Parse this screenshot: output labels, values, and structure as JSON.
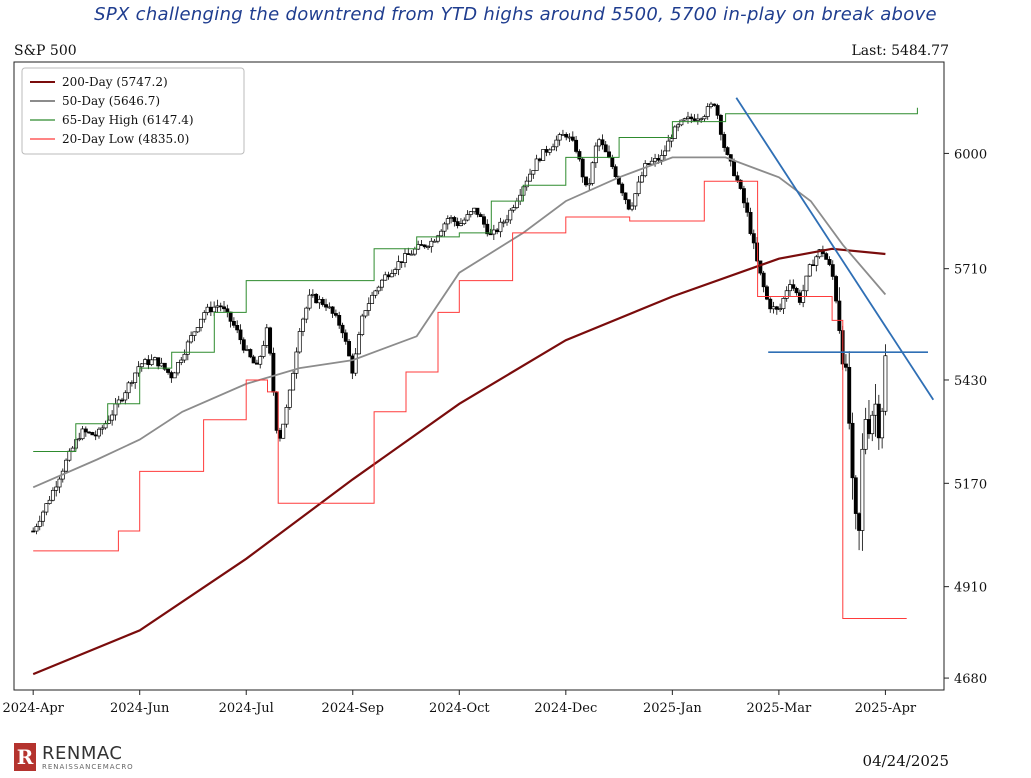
{
  "header": {
    "headline": "SPX challenging the downtrend from YTD highs around 5500, 5700 in-play on break above",
    "series_name": "S&P 500",
    "last_label": "Last: 5484.77"
  },
  "footer": {
    "brand": "RENMAC",
    "brand_sub": "RENAISSANCEMACRO",
    "date": "04/24/2025"
  },
  "chart_data": {
    "type": "line",
    "title": "S&P 500",
    "xlabel": "",
    "ylabel": "",
    "x_ticks": [
      "2024-Apr",
      "2024-Jun",
      "2024-Jul",
      "2024-Sep",
      "2024-Oct",
      "2024-Dec",
      "2025-Jan",
      "2025-Mar",
      "2025-Apr"
    ],
    "y_ticks": [
      4680,
      4910,
      5170,
      5430,
      5710,
      6000
    ],
    "ylim": [
      4650,
      6230
    ],
    "grid": false,
    "legend_position": "top-left",
    "legend": [
      {
        "label": "200-Day",
        "value": "(5747.2)",
        "color": "#7a0c0c"
      },
      {
        "label": "50-Day",
        "value": "(5646.7)",
        "color": "#8c8c8c"
      },
      {
        "label": "65-Day High",
        "value": "(6147.4)",
        "color": "#2e8b2e"
      },
      {
        "label": "20-Day Low",
        "value": "(4835.0)",
        "color": "#ff3b3b"
      }
    ],
    "series": [
      {
        "name": "200-Day",
        "color": "#7a0c0c",
        "x": [
          0,
          1,
          2,
          3,
          4,
          5,
          6,
          7,
          7.5,
          8
        ],
        "values": [
          4690,
          4800,
          4980,
          5180,
          5370,
          5530,
          5640,
          5735,
          5760,
          5747
        ]
      },
      {
        "name": "50-Day",
        "color": "#8c8c8c",
        "x": [
          0,
          0.6,
          1,
          1.4,
          2,
          2.5,
          3,
          3.6,
          4,
          4.6,
          5,
          5.5,
          6,
          6.5,
          7,
          7.3,
          7.6,
          8
        ],
        "values": [
          5160,
          5230,
          5280,
          5350,
          5420,
          5460,
          5480,
          5540,
          5700,
          5800,
          5880,
          5940,
          5990,
          5990,
          5940,
          5880,
          5770,
          5645
        ]
      },
      {
        "name": "65-Day High",
        "color": "#2e8b2e",
        "x": [
          0,
          0.4,
          0.7,
          1,
          1.3,
          1.7,
          2,
          2.5,
          3,
          3.2,
          3.6,
          4,
          4.3,
          4.6,
          5,
          5.5,
          6,
          6.5,
          8.3
        ],
        "values": [
          5250,
          5320,
          5370,
          5460,
          5500,
          5600,
          5680,
          5680,
          5680,
          5760,
          5790,
          5800,
          5880,
          5920,
          5990,
          6040,
          6080,
          6100,
          6115
        ]
      },
      {
        "name": "20-Day Low",
        "color": "#ff3b3b",
        "x": [
          0,
          0.5,
          0.8,
          1,
          1.4,
          1.6,
          2,
          2.2,
          2.3,
          2.6,
          2.8,
          3,
          3.2,
          3.5,
          3.8,
          4,
          4.2,
          4.5,
          4.8,
          5,
          5.3,
          5.6,
          5.8,
          6,
          6.3,
          6.5,
          6.8,
          7,
          7.3,
          7.5,
          7.6,
          7.8,
          8.2
        ],
        "values": [
          5000,
          5000,
          5050,
          5200,
          5200,
          5330,
          5430,
          5400,
          5120,
          5120,
          5120,
          5120,
          5350,
          5450,
          5600,
          5680,
          5680,
          5800,
          5800,
          5840,
          5840,
          5830,
          5830,
          5830,
          5930,
          5930,
          5640,
          5640,
          5640,
          5580,
          4830,
          4830,
          4830
        ]
      },
      {
        "name": "S&P 500",
        "color": "#000000",
        "x": [
          0,
          0.15,
          0.3,
          0.45,
          0.6,
          0.75,
          0.9,
          1,
          1.15,
          1.3,
          1.45,
          1.6,
          1.75,
          1.9,
          2,
          2.1,
          2.2,
          2.3,
          2.4,
          2.5,
          2.6,
          2.75,
          2.9,
          3,
          3.1,
          3.2,
          3.3,
          3.45,
          3.6,
          3.75,
          3.9,
          4,
          4.15,
          4.3,
          4.45,
          4.6,
          4.75,
          4.9,
          5,
          5.1,
          5.2,
          5.3,
          5.45,
          5.6,
          5.75,
          5.9,
          6,
          6.1,
          6.2,
          6.3,
          6.4,
          6.5,
          6.6,
          6.7,
          6.8,
          6.9,
          7,
          7.1,
          7.2,
          7.3,
          7.4,
          7.5,
          7.55,
          7.6,
          7.65,
          7.7,
          7.75,
          7.8,
          7.85,
          7.9,
          7.95,
          8
        ],
        "values": [
          5050,
          5130,
          5220,
          5300,
          5290,
          5350,
          5420,
          5470,
          5480,
          5440,
          5520,
          5600,
          5620,
          5560,
          5500,
          5460,
          5560,
          5270,
          5380,
          5560,
          5640,
          5620,
          5560,
          5450,
          5600,
          5650,
          5690,
          5730,
          5760,
          5780,
          5840,
          5820,
          5860,
          5790,
          5840,
          5920,
          5990,
          6030,
          6050,
          6010,
          5900,
          6040,
          5960,
          5860,
          5970,
          5990,
          6050,
          6080,
          6090,
          6100,
          6130,
          6000,
          5940,
          5850,
          5720,
          5620,
          5600,
          5680,
          5630,
          5720,
          5760,
          5700,
          5610,
          5500,
          5380,
          5100,
          5020,
          5350,
          5320,
          5380,
          5300,
          5480
        ]
      },
      {
        "name": "Downtrend",
        "color": "#2f6fb5",
        "x": [
          6.6,
          8.45
        ],
        "values": [
          6140,
          5380
        ]
      },
      {
        "name": "Support",
        "color": "#2f6fb5",
        "x": [
          6.9,
          8.4
        ],
        "values": [
          5500,
          5500
        ]
      }
    ]
  }
}
